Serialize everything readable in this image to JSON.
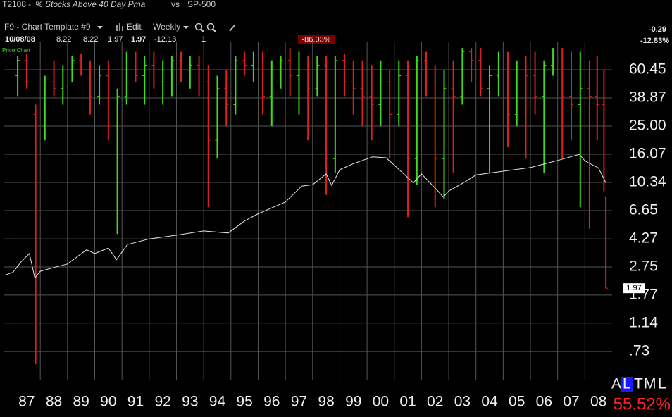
{
  "header": {
    "symbol": "T2108",
    "title": "% Stocks Above 40 Day Pma",
    "vs": "vs",
    "compare": "SP-500",
    "template": "F9 - Chart Template #9",
    "edit": "Edit",
    "period": "Weekly",
    "date": "10/08/08",
    "open": 8.22,
    "high": 8.22,
    "low": 1.97,
    "close": 1.97,
    "net": -12.13,
    "volume": 1,
    "percent_box": "-86.03%",
    "change": -0.29,
    "change_pct": "-12.83%",
    "pane_label": "Price Chart"
  },
  "chart_data": {
    "type": "candlestick",
    "log_scale": true,
    "grid": true,
    "up_color": "#3fdc1e",
    "down_color": "#e02020",
    "xlim": [
      1986.65,
      2009.0
    ],
    "ylim": [
      0.47,
      94
    ],
    "xticks": [
      {
        "value": 1987,
        "label": "87"
      },
      {
        "value": 1988,
        "label": "88"
      },
      {
        "value": 1989,
        "label": "89"
      },
      {
        "value": 1990,
        "label": "90"
      },
      {
        "value": 1991,
        "label": "91"
      },
      {
        "value": 1992,
        "label": "92"
      },
      {
        "value": 1993,
        "label": "93"
      },
      {
        "value": 1994,
        "label": "94"
      },
      {
        "value": 1995,
        "label": "95"
      },
      {
        "value": 1996,
        "label": "96"
      },
      {
        "value": 1997,
        "label": "97"
      },
      {
        "value": 1998,
        "label": "98"
      },
      {
        "value": 1999,
        "label": "99"
      },
      {
        "value": 2000,
        "label": "00"
      },
      {
        "value": 2001,
        "label": "01"
      },
      {
        "value": 2002,
        "label": "02"
      },
      {
        "value": 2003,
        "label": "03"
      },
      {
        "value": 2004,
        "label": "04"
      },
      {
        "value": 2005,
        "label": "05"
      },
      {
        "value": 2006,
        "label": "06"
      },
      {
        "value": 2007,
        "label": "07"
      },
      {
        "value": 2008,
        "label": "08"
      }
    ],
    "yticks": [
      60.45,
      38.87,
      {
        "value": 25,
        "label": "25.00"
      },
      16.07,
      10.34,
      6.65,
      4.27,
      2.75,
      1.77,
      1.14,
      {
        "value": 0.73,
        "label": ".73"
      }
    ],
    "x": [
      1987.17,
      1987.5,
      1987.83,
      1988.17,
      1988.5,
      1988.83,
      1989.17,
      1989.5,
      1989.83,
      1990.17,
      1990.5,
      1990.83,
      1991.17,
      1991.5,
      1991.83,
      1992.17,
      1992.5,
      1992.83,
      1993.17,
      1993.5,
      1993.83,
      1994.17,
      1994.5,
      1994.83,
      1995.17,
      1995.5,
      1995.83,
      1996.17,
      1996.5,
      1996.83,
      1997.17,
      1997.5,
      1997.83,
      1998.17,
      1998.5,
      1998.83,
      1999.17,
      1999.5,
      1999.83,
      2000.17,
      2000.5,
      2000.83,
      2001.17,
      2001.5,
      2001.83,
      2002.17,
      2002.5,
      2002.83,
      2003.17,
      2003.5,
      2003.83,
      2004.17,
      2004.5,
      2004.83,
      2005.17,
      2005.5,
      2005.83,
      2006.17,
      2006.5,
      2006.83,
      2007.17,
      2007.5,
      2007.83,
      2008.17,
      2008.45,
      2008.7,
      2008.77
    ],
    "ohlc": [
      [
        55,
        75,
        40,
        70
      ],
      [
        70,
        78,
        45,
        50
      ],
      [
        30,
        35,
        0.6,
        25
      ],
      [
        25,
        55,
        20,
        50
      ],
      [
        50,
        70,
        40,
        45
      ],
      [
        45,
        65,
        35,
        60
      ],
      [
        60,
        75,
        50,
        70
      ],
      [
        70,
        78,
        55,
        60
      ],
      [
        60,
        70,
        30,
        40
      ],
      [
        40,
        65,
        35,
        55
      ],
      [
        55,
        70,
        20,
        25
      ],
      [
        25,
        45,
        4.6,
        40
      ],
      [
        40,
        80,
        35,
        75
      ],
      [
        75,
        80,
        50,
        55
      ],
      [
        55,
        75,
        35,
        65
      ],
      [
        65,
        80,
        45,
        50
      ],
      [
        50,
        70,
        35,
        60
      ],
      [
        60,
        75,
        40,
        70
      ],
      [
        70,
        80,
        50,
        60
      ],
      [
        60,
        75,
        45,
        65
      ],
      [
        65,
        75,
        40,
        50
      ],
      [
        50,
        65,
        7,
        20
      ],
      [
        20,
        55,
        15,
        45
      ],
      [
        45,
        60,
        25,
        35
      ],
      [
        35,
        75,
        30,
        70
      ],
      [
        70,
        80,
        55,
        65
      ],
      [
        65,
        80,
        50,
        75
      ],
      [
        75,
        80,
        30,
        40
      ],
      [
        40,
        70,
        25,
        60
      ],
      [
        60,
        75,
        45,
        70
      ],
      [
        70,
        85,
        40,
        55
      ],
      [
        55,
        80,
        30,
        60
      ],
      [
        60,
        75,
        20,
        45
      ],
      [
        45,
        75,
        40,
        65
      ],
      [
        65,
        75,
        8.5,
        15
      ],
      [
        15,
        75,
        12,
        70
      ],
      [
        70,
        78,
        40,
        50
      ],
      [
        50,
        70,
        30,
        45
      ],
      [
        45,
        70,
        25,
        40
      ],
      [
        40,
        65,
        20,
        35
      ],
      [
        35,
        70,
        25,
        50
      ],
      [
        50,
        60,
        15,
        30
      ],
      [
        30,
        70,
        25,
        55
      ],
      [
        55,
        70,
        6,
        15
      ],
      [
        15,
        75,
        10,
        70
      ],
      [
        70,
        80,
        40,
        50
      ],
      [
        50,
        65,
        7,
        15
      ],
      [
        15,
        60,
        8,
        45
      ],
      [
        45,
        70,
        12,
        40
      ],
      [
        40,
        85,
        35,
        80
      ],
      [
        80,
        85,
        50,
        70
      ],
      [
        70,
        85,
        40,
        45
      ],
      [
        45,
        65,
        12,
        55
      ],
      [
        55,
        80,
        40,
        75
      ],
      [
        75,
        80,
        18,
        30
      ],
      [
        30,
        70,
        25,
        60
      ],
      [
        60,
        75,
        15,
        55
      ],
      [
        55,
        80,
        30,
        40
      ],
      [
        40,
        70,
        12,
        65
      ],
      [
        65,
        85,
        55,
        75
      ],
      [
        75,
        85,
        15,
        40
      ],
      [
        40,
        80,
        20,
        35
      ],
      [
        35,
        80,
        7,
        45
      ],
      [
        45,
        70,
        5,
        40
      ],
      [
        40,
        75,
        20,
        35
      ],
      [
        35,
        60,
        9,
        8.22
      ],
      [
        8.22,
        8.22,
        1.97,
        1.97
      ]
    ],
    "overlay": {
      "name": "SP-500",
      "color": "#e6e6e6",
      "axis": "y2",
      "y2lim": [
        45.7,
        9150
      ],
      "x": [
        1986.7,
        1987.0,
        1987.3,
        1987.6,
        1987.8,
        1988.0,
        1988.5,
        1989.0,
        1989.7,
        1990.0,
        1990.5,
        1990.8,
        1991.2,
        1992.0,
        1993.0,
        1994.0,
        1994.9,
        1995.5,
        1996.0,
        1997.0,
        1997.6,
        1998.0,
        1998.5,
        1998.7,
        1999.0,
        1999.5,
        2000.2,
        2000.7,
        2001.0,
        2001.7,
        2002.0,
        2002.6,
        2002.8,
        2003.0,
        2003.5,
        2004.0,
        2005.0,
        2006.0,
        2007.0,
        2007.8,
        2008.0,
        2008.5,
        2008.77
      ],
      "values": [
        235,
        246,
        290,
        330,
        225,
        250,
        265,
        280,
        350,
        330,
        360,
        300,
        380,
        415,
        440,
        470,
        455,
        550,
        615,
        740,
        950,
        970,
        1150,
        960,
        1230,
        1350,
        1500,
        1480,
        1320,
        1000,
        1150,
        880,
        800,
        880,
        990,
        1130,
        1200,
        1270,
        1420,
        1560,
        1410,
        1260,
        1000
      ]
    }
  },
  "footer": {
    "modes": [
      "A",
      "L",
      "T",
      "M",
      "L"
    ],
    "pct": "55.52%"
  }
}
